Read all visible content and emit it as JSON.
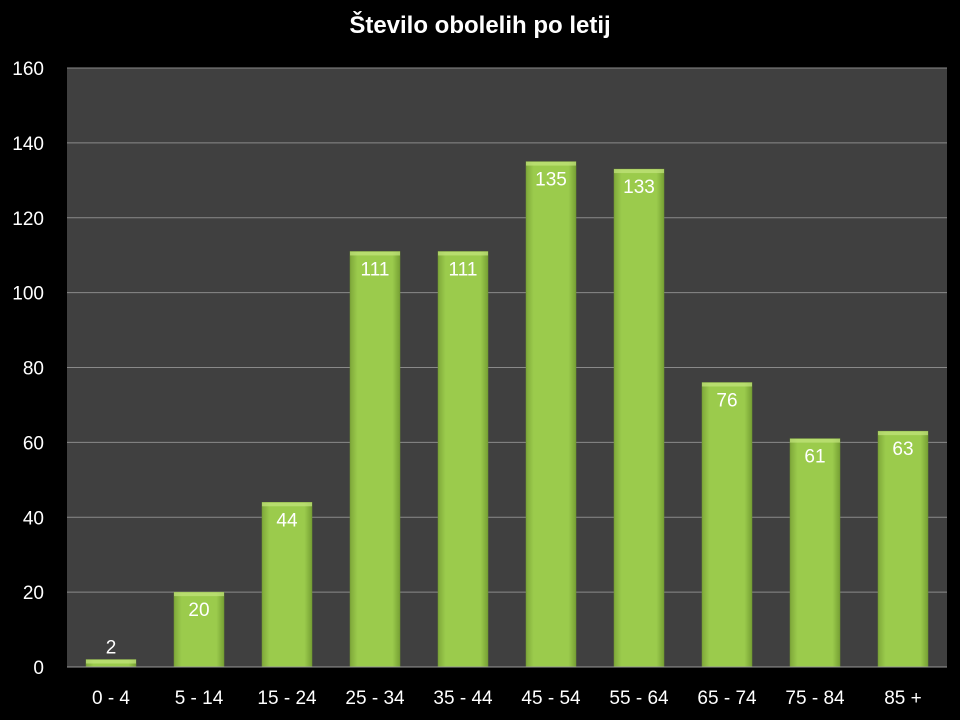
{
  "chart_data": {
    "type": "bar",
    "title": "Število obolelih po letij",
    "xlabel": "",
    "ylabel": "",
    "categories": [
      "0 - 4",
      "5 - 14",
      "15 - 24",
      "25 - 34",
      "35 - 44",
      "45 - 54",
      "55 - 64",
      "65 - 74",
      "75 - 84",
      "85 +"
    ],
    "values": [
      2,
      20,
      44,
      111,
      111,
      135,
      133,
      76,
      61,
      63
    ],
    "ylim": [
      0,
      160
    ],
    "yticks": [
      0,
      20,
      40,
      60,
      80,
      100,
      120,
      140,
      160
    ],
    "grid": true,
    "legend": "none",
    "colors": {
      "bar": "#9bcb4c",
      "plot_bg": "#404040",
      "grid": "#8a8a8a",
      "background": "#000000"
    }
  }
}
